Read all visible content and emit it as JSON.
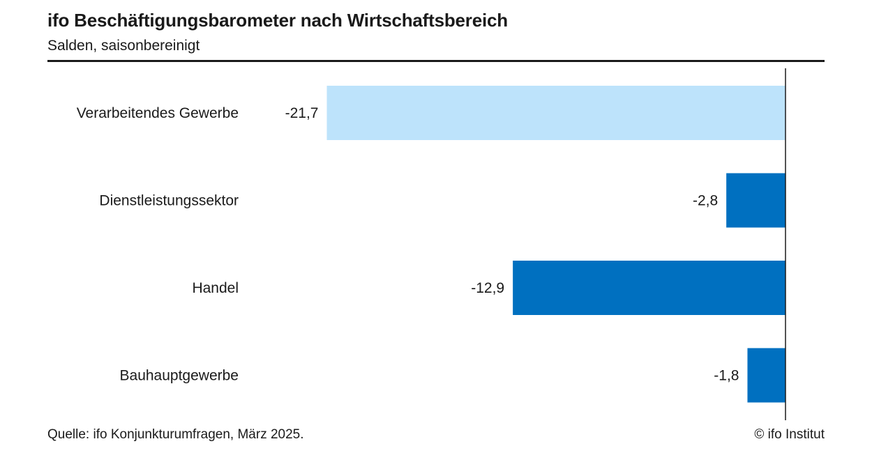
{
  "header": {
    "title": "ifo Beschäftigungsbarometer nach Wirtschaftsbereich",
    "subtitle": "Salden, saisonbereinigt"
  },
  "footer": {
    "source": "Quelle: ifo Konjunkturumfragen, März 2025.",
    "copyright": "© ifo Institut"
  },
  "chart_data": {
    "type": "bar",
    "orientation": "horizontal",
    "categories": [
      "Verarbeitendes Gewerbe",
      "Dienstleistungssektor",
      "Handel",
      "Bauhauptgewerbe"
    ],
    "values": [
      -21.7,
      -2.8,
      -12.9,
      -1.8
    ],
    "value_labels": [
      "-21,7",
      "-2,8",
      "-12,9",
      "-1,8"
    ],
    "colors": [
      "#bde3fb",
      "#0070c0",
      "#0070c0",
      "#0070c0"
    ],
    "xlim": [
      -25,
      0
    ],
    "grid": false,
    "legend": "none"
  }
}
